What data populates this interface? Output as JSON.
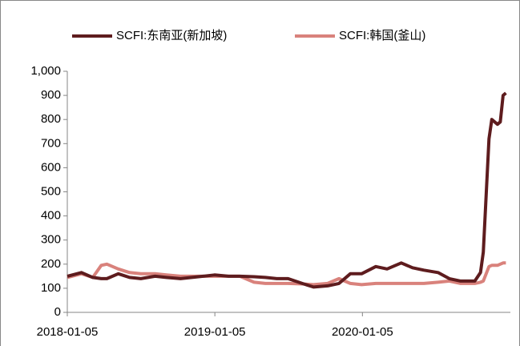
{
  "chart_data": {
    "type": "line",
    "x": [
      "2018-01-05",
      "2018-02-09",
      "2018-03-09",
      "2018-03-30",
      "2018-04-13",
      "2018-05-11",
      "2018-06-08",
      "2018-07-06",
      "2018-08-10",
      "2018-09-07",
      "2018-10-12",
      "2018-11-09",
      "2018-12-07",
      "2019-01-04",
      "2019-02-08",
      "2019-03-08",
      "2019-04-12",
      "2019-05-10",
      "2019-06-07",
      "2019-07-05",
      "2019-08-09",
      "2019-09-06",
      "2019-10-11",
      "2019-11-08",
      "2019-12-06",
      "2020-01-03",
      "2020-02-07",
      "2020-03-06",
      "2020-04-10",
      "2020-05-08",
      "2020-06-05",
      "2020-07-10",
      "2020-08-07",
      "2020-09-04",
      "2020-10-09",
      "2020-10-23",
      "2020-10-30",
      "2020-11-13",
      "2020-11-20",
      "2020-12-04",
      "2020-12-11",
      "2020-12-18",
      "2020-12-25"
    ],
    "series": [
      {
        "name": "SCFI:东南亚(新加坡)",
        "color": "#5e1c1e",
        "values": [
          150,
          165,
          145,
          140,
          140,
          160,
          145,
          140,
          150,
          145,
          140,
          145,
          150,
          155,
          150,
          150,
          148,
          145,
          140,
          140,
          120,
          105,
          110,
          120,
          160,
          160,
          190,
          180,
          205,
          185,
          175,
          165,
          140,
          130,
          130,
          165,
          250,
          720,
          800,
          780,
          790,
          900,
          910
        ]
      },
      {
        "name": "SCFI:韩国(釜山)",
        "color": "#d9827c",
        "values": [
          145,
          160,
          145,
          195,
          200,
          180,
          165,
          160,
          160,
          155,
          150,
          150,
          150,
          150,
          150,
          150,
          125,
          120,
          120,
          120,
          118,
          115,
          120,
          140,
          120,
          115,
          120,
          120,
          120,
          120,
          120,
          125,
          130,
          120,
          120,
          125,
          130,
          190,
          195,
          195,
          200,
          205,
          205
        ]
      }
    ],
    "xlim": [
      "2018-01-05",
      "2021-01-05"
    ],
    "xticks": [
      "2018-01-05",
      "2019-01-05",
      "2020-01-05"
    ],
    "ylim": [
      0,
      1000
    ],
    "yticks": [
      0,
      100,
      200,
      300,
      400,
      500,
      600,
      700,
      800,
      900,
      {
        "value": 1000,
        "label": "1,000"
      }
    ],
    "grid": false
  }
}
